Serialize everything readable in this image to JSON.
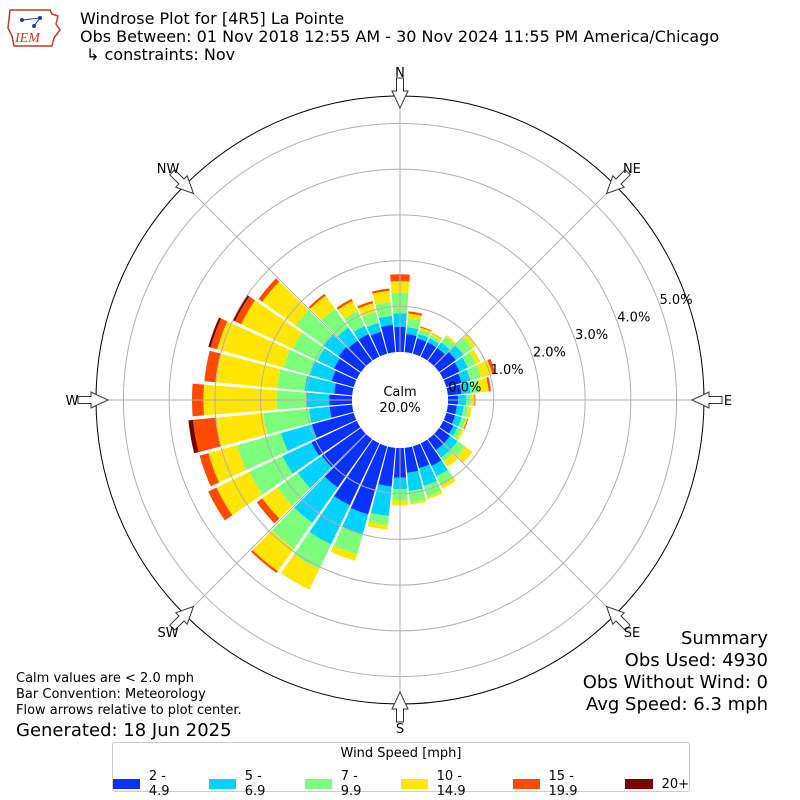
{
  "header": {
    "title": "Windrose Plot for [4R5] La Pointe",
    "obs_between": "Obs Between: 01 Nov 2018 12:55 AM - 30 Nov 2024 11:55 PM America/Chicago",
    "constraints": "↳ constraints: Nov"
  },
  "logo": {
    "text": "IEM"
  },
  "summary": {
    "title": "Summary",
    "obs_used": "Obs Used: 4930",
    "obs_without_wind": "Obs Without Wind: 0",
    "avg_speed": "Avg Speed: 6.3 mph"
  },
  "notes": {
    "calm": "Calm values are < 2.0 mph",
    "convention": "Bar Convention: Meteorology",
    "flow": "Flow arrows relative to plot center.",
    "generated": "Generated: 18 Jun 2025"
  },
  "chart_data": {
    "type": "windrose",
    "calm_label": "Calm",
    "calm_percent": "20.0%",
    "rlim": [
      0,
      5.6
    ],
    "radial_ticks": [
      0,
      1,
      2,
      3,
      4,
      5
    ],
    "radial_tick_labels": [
      "0.0%",
      "1.0%",
      "2.0%",
      "3.0%",
      "4.0%",
      "5.0%"
    ],
    "compass_labels": [
      "N",
      "NE",
      "E",
      "SE",
      "S",
      "SW",
      "W",
      "NW"
    ],
    "legend_title": "Wind Speed [mph]",
    "speed_bins": [
      "2 - 4.9",
      "5 - 6.9",
      "7 - 9.9",
      "10 - 14.9",
      "15 - 19.9",
      "20+"
    ],
    "colors": [
      "#0a32ff",
      "#00d2ff",
      "#7dff7d",
      "#ffe600",
      "#ff4b00",
      "#780000"
    ],
    "directions": [
      0,
      10,
      20,
      30,
      40,
      50,
      60,
      70,
      80,
      90,
      100,
      110,
      120,
      130,
      140,
      150,
      160,
      170,
      180,
      190,
      200,
      210,
      220,
      230,
      240,
      250,
      260,
      270,
      280,
      290,
      300,
      310,
      320,
      330,
      340,
      350
    ],
    "cumulative_percent": [
      [
        0.55,
        0.85,
        1.3,
        1.55,
        1.7,
        1.7
      ],
      [
        0.4,
        0.55,
        0.75,
        0.85,
        0.9,
        0.9
      ],
      [
        0.35,
        0.45,
        0.55,
        0.6,
        0.62,
        0.62
      ],
      [
        0.35,
        0.45,
        0.52,
        0.57,
        0.58,
        0.58
      ],
      [
        0.35,
        0.5,
        0.65,
        0.7,
        0.7,
        0.7
      ],
      [
        0.45,
        0.65,
        0.9,
        1.0,
        1.0,
        1.0
      ],
      [
        0.4,
        0.6,
        0.8,
        0.9,
        0.9,
        0.9
      ],
      [
        0.35,
        0.55,
        0.8,
        1.05,
        1.12,
        1.12
      ],
      [
        0.3,
        0.5,
        0.7,
        0.9,
        0.95,
        0.95
      ],
      [
        0.22,
        0.4,
        0.5,
        0.58,
        0.6,
        0.6
      ],
      [
        0.2,
        0.35,
        0.45,
        0.52,
        0.52,
        0.52
      ],
      [
        0.2,
        0.35,
        0.45,
        0.48,
        0.5,
        0.5
      ],
      [
        0.25,
        0.35,
        0.45,
        0.5,
        0.5,
        0.5
      ],
      [
        0.3,
        0.5,
        0.7,
        0.9,
        0.9,
        0.9
      ],
      [
        0.3,
        0.5,
        0.6,
        0.75,
        0.75,
        0.75
      ],
      [
        0.55,
        0.8,
        1.0,
        1.1,
        1.1,
        1.1
      ],
      [
        0.5,
        0.9,
        1.15,
        1.2,
        1.2,
        1.2
      ],
      [
        0.55,
        0.95,
        1.2,
        1.25,
        1.25,
        1.25
      ],
      [
        0.65,
        0.9,
        1.15,
        1.25,
        1.25,
        1.25
      ],
      [
        0.85,
        1.5,
        1.7,
        1.8,
        1.8,
        1.8
      ],
      [
        1.55,
        2.0,
        2.45,
        2.6,
        2.6,
        2.6
      ],
      [
        1.5,
        2.45,
        3.05,
        3.55,
        3.55,
        3.55
      ],
      [
        1.3,
        2.25,
        2.95,
        3.55,
        3.6,
        3.6
      ],
      [
        1.05,
        1.7,
        2.25,
        2.65,
        2.8,
        2.8
      ],
      [
        1.1,
        1.8,
        2.6,
        3.4,
        3.6,
        3.6
      ],
      [
        0.95,
        1.65,
        2.65,
        3.3,
        3.5,
        3.5
      ],
      [
        0.5,
        0.95,
        1.95,
        3.0,
        3.5,
        3.6
      ],
      [
        0.5,
        1.0,
        1.65,
        3.25,
        3.5,
        3.5
      ],
      [
        0.4,
        1.05,
        1.65,
        3.0,
        3.25,
        3.25
      ],
      [
        0.5,
        1.0,
        1.6,
        3.1,
        3.25,
        3.3
      ],
      [
        0.55,
        0.95,
        1.55,
        2.8,
        2.95,
        3.0
      ],
      [
        0.6,
        1.0,
        1.75,
        2.65,
        2.75,
        2.75
      ],
      [
        0.55,
        0.9,
        1.4,
        1.75,
        1.8,
        1.8
      ],
      [
        0.55,
        0.75,
        1.1,
        1.35,
        1.4,
        1.4
      ],
      [
        0.5,
        0.7,
        0.95,
        1.15,
        1.2,
        1.2
      ],
      [
        0.6,
        0.8,
        1.1,
        1.35,
        1.4,
        1.4
      ]
    ]
  }
}
